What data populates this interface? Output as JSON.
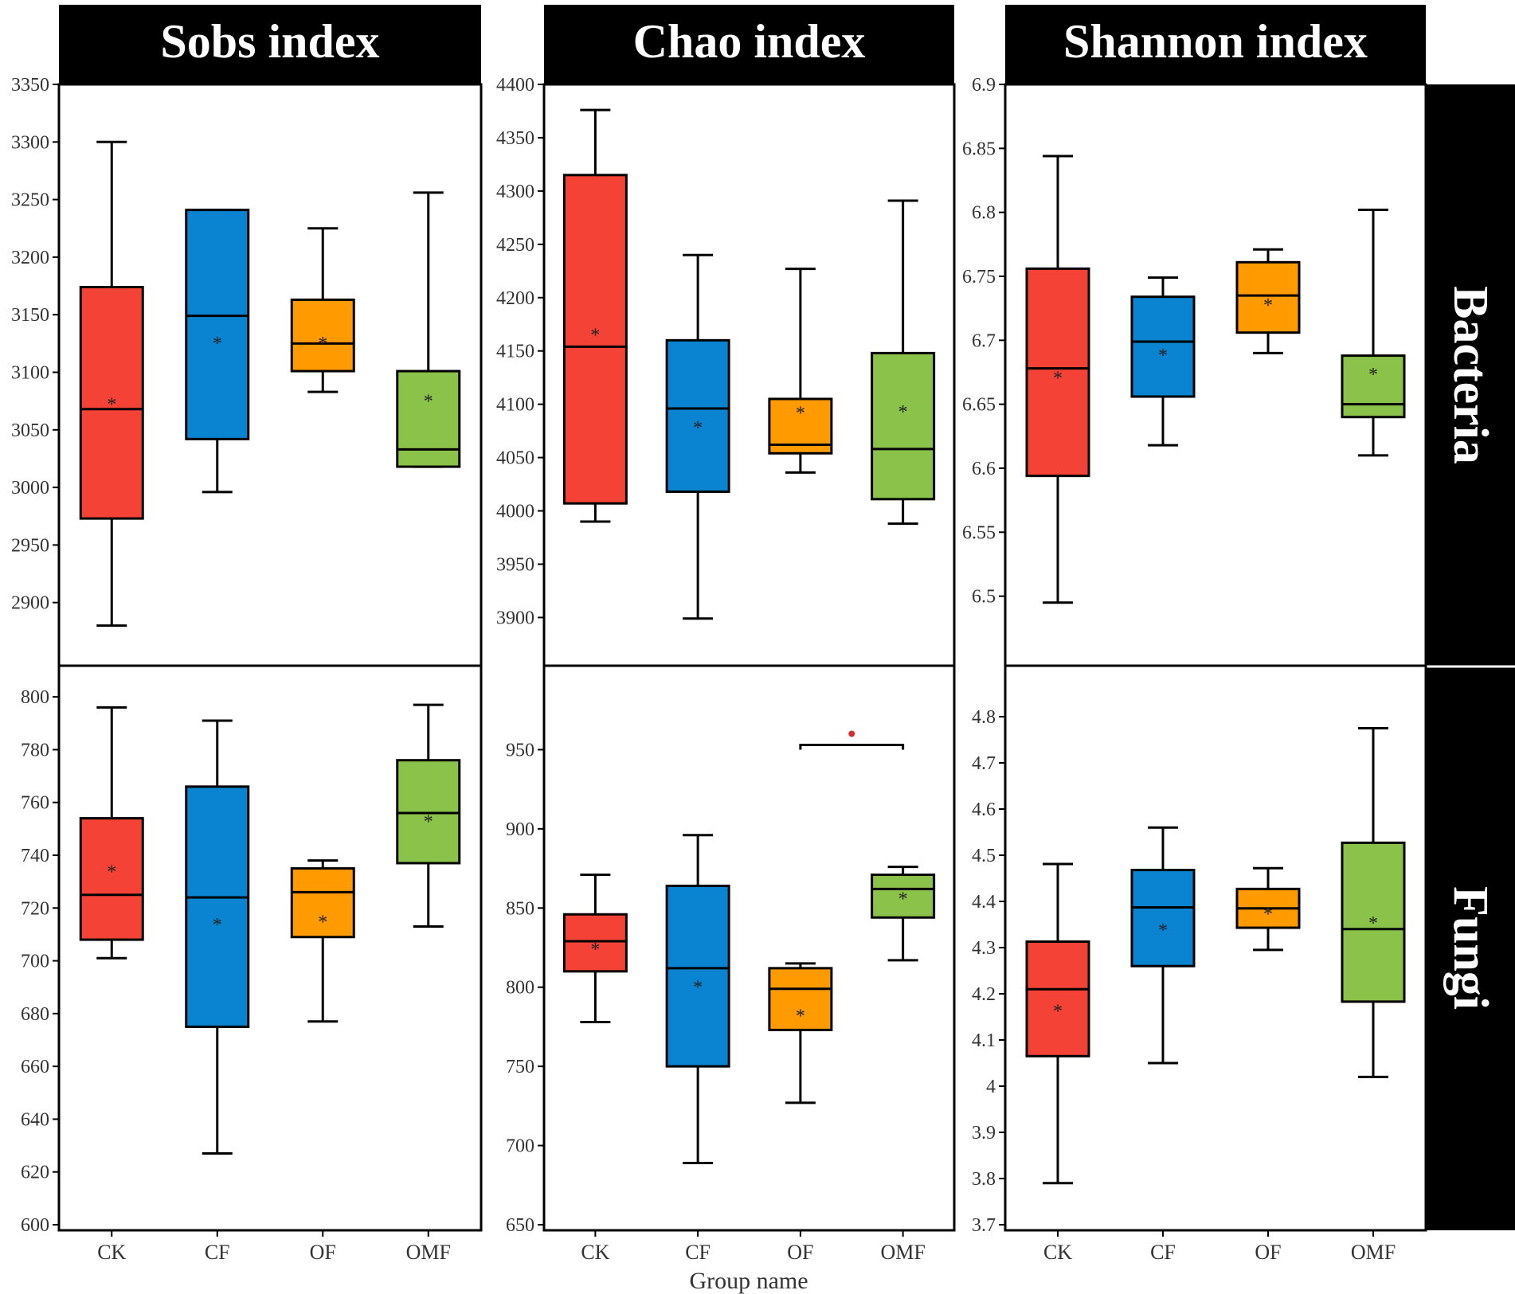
{
  "figure": {
    "x_axis_title": "Group name",
    "columns": [
      {
        "title": "Sobs index"
      },
      {
        "title": "Chao index"
      },
      {
        "title": "Shannon index"
      }
    ],
    "rows": [
      {
        "title": "Bacteria"
      },
      {
        "title": "Fungi"
      }
    ],
    "colors": {
      "CK": "#f44336",
      "CF": "#0a84d0",
      "OF": "#ff9a00",
      "OMF": "#8bc34a",
      "header_bg": "#000000",
      "header_text": "#ffffff",
      "significance": "#d32f2f"
    }
  },
  "chart_data": [
    {
      "type": "box",
      "id": "bacteria-sobs",
      "column_title": "Sobs index",
      "row_title": "Bacteria",
      "categories": [
        "CK",
        "CF",
        "OF",
        "OMF"
      ],
      "show_xticks": false,
      "ylim": [
        2850,
        3350
      ],
      "yticks": [
        "2900",
        "2950",
        "3000",
        "3050",
        "3100",
        "3150",
        "3200",
        "3250",
        "3300",
        "3350"
      ],
      "boxes": [
        {
          "name": "CK",
          "min": 2880,
          "q1": 2973,
          "median": 3068,
          "q3": 3174,
          "max": 3300,
          "mean": 3075
        },
        {
          "name": "CF",
          "min": 2996,
          "q1": 3042,
          "median": 3149,
          "q3": 3241,
          "max": 3241,
          "mean": 3128
        },
        {
          "name": "OF",
          "min": 3083,
          "q1": 3101,
          "median": 3125,
          "q3": 3163,
          "max": 3225,
          "mean": 3128
        },
        {
          "name": "OMF",
          "min": 3018,
          "q1": 3018,
          "median": 3033,
          "q3": 3101,
          "max": 3256,
          "mean": 3078
        }
      ]
    },
    {
      "type": "box",
      "id": "bacteria-chao",
      "column_title": "Chao index",
      "row_title": "Bacteria",
      "categories": [
        "CK",
        "CF",
        "OF",
        "OMF"
      ],
      "show_xticks": false,
      "ylim": [
        3860,
        4400
      ],
      "yticks": [
        "3900",
        "3950",
        "4000",
        "4050",
        "4100",
        "4150",
        "4200",
        "4250",
        "4300",
        "4350",
        "4400"
      ],
      "boxes": [
        {
          "name": "CK",
          "min": 3990,
          "q1": 4007,
          "median": 4154,
          "q3": 4315,
          "max": 4376,
          "mean": 4168
        },
        {
          "name": "CF",
          "min": 3899,
          "q1": 4018,
          "median": 4096,
          "q3": 4160,
          "max": 4240,
          "mean": 4081
        },
        {
          "name": "OF",
          "min": 4036,
          "q1": 4054,
          "median": 4062,
          "q3": 4105,
          "max": 4227,
          "mean": 4095
        },
        {
          "name": "OMF",
          "min": 3988,
          "q1": 4011,
          "median": 4058,
          "q3": 4148,
          "max": 4291,
          "mean": 4096
        }
      ]
    },
    {
      "type": "box",
      "id": "bacteria-shannon",
      "column_title": "Shannon index",
      "row_title": "Bacteria",
      "categories": [
        "CK",
        "CF",
        "OF",
        "OMF"
      ],
      "show_xticks": false,
      "ylim": [
        6.45,
        6.9
      ],
      "yticks": [
        "6.5",
        "6.55",
        "6.6",
        "6.65",
        "6.7",
        "6.75",
        "6.8",
        "6.85",
        "6.9"
      ],
      "boxes": [
        {
          "name": "CK",
          "min": 6.495,
          "q1": 6.594,
          "median": 6.678,
          "q3": 6.756,
          "max": 6.844,
          "mean": 6.673
        },
        {
          "name": "CF",
          "min": 6.618,
          "q1": 6.656,
          "median": 6.699,
          "q3": 6.734,
          "max": 6.749,
          "mean": 6.691
        },
        {
          "name": "OF",
          "min": 6.69,
          "q1": 6.706,
          "median": 6.735,
          "q3": 6.761,
          "max": 6.771,
          "mean": 6.73
        },
        {
          "name": "OMF",
          "min": 6.61,
          "q1": 6.64,
          "median": 6.65,
          "q3": 6.688,
          "max": 6.802,
          "mean": 6.676
        }
      ]
    },
    {
      "type": "box",
      "id": "fungi-sobs",
      "column_title": "Sobs index",
      "row_title": "Fungi",
      "categories": [
        "CK",
        "CF",
        "OF",
        "OMF"
      ],
      "show_xticks": true,
      "ylim": [
        600,
        810
      ],
      "yticks": [
        "600",
        "620",
        "640",
        "660",
        "680",
        "700",
        "720",
        "740",
        "760",
        "780",
        "800"
      ],
      "boxes": [
        {
          "name": "CK",
          "min": 701,
          "q1": 708,
          "median": 725,
          "q3": 754,
          "max": 796,
          "mean": 735
        },
        {
          "name": "CF",
          "min": 627,
          "q1": 675,
          "median": 724,
          "q3": 766,
          "max": 791,
          "mean": 715
        },
        {
          "name": "OF",
          "min": 677,
          "q1": 709,
          "median": 726,
          "q3": 735,
          "max": 738,
          "mean": 716
        },
        {
          "name": "OMF",
          "min": 713,
          "q1": 737,
          "median": 756,
          "q3": 776,
          "max": 797,
          "mean": 754
        }
      ]
    },
    {
      "type": "box",
      "id": "fungi-chao",
      "column_title": "Chao index",
      "row_title": "Fungi",
      "categories": [
        "CK",
        "CF",
        "OF",
        "OMF"
      ],
      "show_xticks": true,
      "ylim": [
        650,
        1000
      ],
      "yticks": [
        "650",
        "700",
        "750",
        "800",
        "850",
        "900",
        "950"
      ],
      "boxes": [
        {
          "name": "CK",
          "min": 778,
          "q1": 810,
          "median": 829,
          "q3": 846,
          "max": 871,
          "mean": 826
        },
        {
          "name": "CF",
          "min": 689,
          "q1": 750,
          "median": 812,
          "q3": 864,
          "max": 896,
          "mean": 802
        },
        {
          "name": "OF",
          "min": 727,
          "q1": 773,
          "median": 799,
          "q3": 812,
          "max": 815,
          "mean": 784
        },
        {
          "name": "OMF",
          "min": 817,
          "q1": 844,
          "median": 862,
          "q3": 871,
          "max": 876,
          "mean": 858
        }
      ],
      "significance": {
        "from": "OF",
        "to": "OMF",
        "y": 953
      }
    },
    {
      "type": "box",
      "id": "fungi-shannon",
      "column_title": "Shannon index",
      "row_title": "Fungi",
      "categories": [
        "CK",
        "CF",
        "OF",
        "OMF"
      ],
      "show_xticks": true,
      "ylim": [
        3.7,
        4.9
      ],
      "yticks": [
        "3.7",
        "3.8",
        "3.9",
        "4",
        "4.1",
        "4.2",
        "4.3",
        "4.4",
        "4.5",
        "4.6",
        "4.7",
        "4.8"
      ],
      "boxes": [
        {
          "name": "CK",
          "min": 3.79,
          "q1": 4.065,
          "median": 4.21,
          "q3": 4.313,
          "max": 4.481,
          "mean": 4.17
        },
        {
          "name": "CF",
          "min": 4.05,
          "q1": 4.26,
          "median": 4.387,
          "q3": 4.468,
          "max": 4.56,
          "mean": 4.345
        },
        {
          "name": "OF",
          "min": 4.295,
          "q1": 4.343,
          "median": 4.385,
          "q3": 4.427,
          "max": 4.472,
          "mean": 4.38
        },
        {
          "name": "OMF",
          "min": 4.02,
          "q1": 4.183,
          "median": 4.34,
          "q3": 4.527,
          "max": 4.775,
          "mean": 4.36
        }
      ]
    }
  ]
}
